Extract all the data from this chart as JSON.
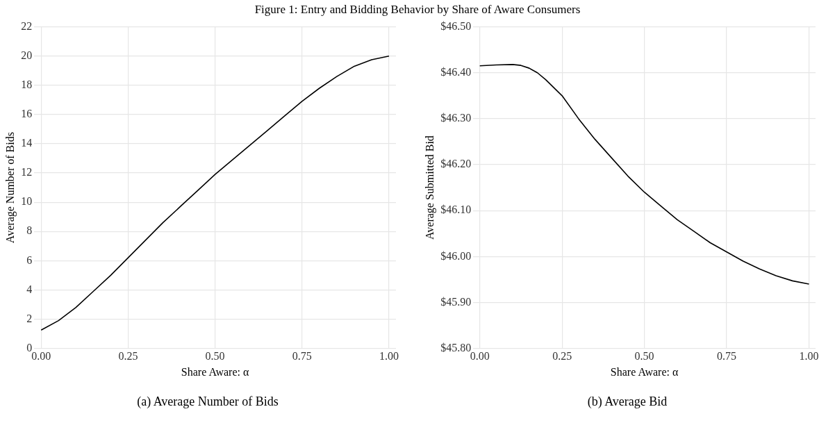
{
  "chart_data": [
    {
      "type": "line",
      "title": "Figure 1: Entry and Bidding Behavior by Share of Aware Consumers",
      "xlabel": "Share Aware: α",
      "ylabel": "Average Number of Bids",
      "annotations": [
        "(a) Average Number of Bids"
      ],
      "x": [
        0,
        0.05,
        0.1,
        0.15,
        0.2,
        0.25,
        0.3,
        0.35,
        0.4,
        0.45,
        0.5,
        0.55,
        0.6,
        0.65,
        0.7,
        0.75,
        0.8,
        0.85,
        0.9,
        0.95,
        1.0
      ],
      "series": [
        {
          "color": "#000000",
          "values": [
            1.25,
            1.9,
            2.8,
            3.9,
            5.0,
            6.2,
            7.4,
            8.6,
            9.7,
            10.8,
            11.9,
            12.9,
            13.9,
            14.9,
            15.9,
            16.9,
            17.8,
            18.6,
            19.3,
            19.75,
            20.0
          ]
        }
      ],
      "xlim": [
        -0.02,
        1.02
      ],
      "xticks": [
        {
          "value": 0,
          "label": "0.00"
        },
        {
          "value": 0.25,
          "label": "0.25"
        },
        {
          "value": 0.5,
          "label": "0.50"
        },
        {
          "value": 0.75,
          "label": "0.75"
        },
        {
          "value": 1,
          "label": "1.00"
        }
      ],
      "ylim": [
        0,
        22
      ],
      "yticks": [
        0,
        2,
        4,
        6,
        8,
        10,
        12,
        14,
        16,
        18,
        20,
        22
      ],
      "grid": true,
      "legend": false,
      "marker": "none",
      "line_style": "solid"
    },
    {
      "type": "line",
      "xlabel": "Share Aware: α",
      "ylabel": "Average Submitted Bid",
      "annotations": [
        "(b) Average Bid"
      ],
      "x": [
        0,
        0.05,
        0.1,
        0.125,
        0.15,
        0.175,
        0.2,
        0.25,
        0.3,
        0.35,
        0.4,
        0.45,
        0.5,
        0.55,
        0.6,
        0.65,
        0.7,
        0.75,
        0.8,
        0.85,
        0.9,
        0.95,
        1.0
      ],
      "series": [
        {
          "color": "#000000",
          "values": [
            46.415,
            46.417,
            46.418,
            46.416,
            46.41,
            46.4,
            46.385,
            46.35,
            46.3,
            46.255,
            46.215,
            46.175,
            46.14,
            46.11,
            46.08,
            46.055,
            46.03,
            46.01,
            45.99,
            45.973,
            45.958,
            45.947,
            45.94
          ]
        }
      ],
      "xlim": [
        -0.02,
        1.02
      ],
      "xticks": [
        {
          "value": 0,
          "label": "0.00"
        },
        {
          "value": 0.25,
          "label": "0.25"
        },
        {
          "value": 0.5,
          "label": "0.50"
        },
        {
          "value": 0.75,
          "label": "0.75"
        },
        {
          "value": 1,
          "label": "1.00"
        }
      ],
      "ylim": [
        45.8,
        46.5
      ],
      "yticks": [
        {
          "value": 45.8,
          "label": "$45.80"
        },
        {
          "value": 45.9,
          "label": "$45.90"
        },
        {
          "value": 46.0,
          "label": "$46.00"
        },
        {
          "value": 46.1,
          "label": "$46.10"
        },
        {
          "value": 46.2,
          "label": "$46.20"
        },
        {
          "value": 46.3,
          "label": "$46.30"
        },
        {
          "value": 46.4,
          "label": "$46.40"
        },
        {
          "value": 46.5,
          "label": "$46.50"
        }
      ],
      "grid": true,
      "legend": false,
      "marker": "none",
      "line_style": "solid"
    }
  ]
}
